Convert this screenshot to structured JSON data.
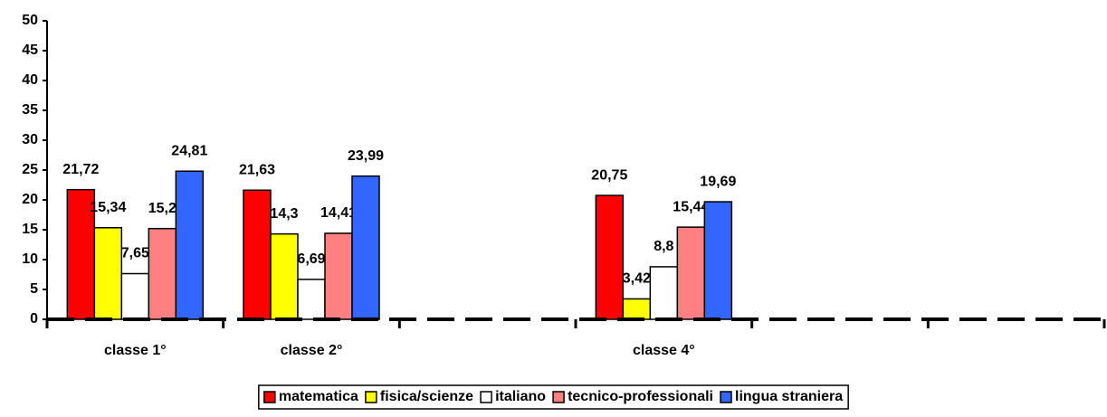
{
  "chart_data": {
    "type": "bar",
    "categories": [
      "classe 1°",
      "classe 2°",
      null,
      "classe 4°",
      null,
      null
    ],
    "series": [
      {
        "name": "matematica",
        "color": "#ff0000",
        "values": [
          21.72,
          21.63,
          null,
          20.75,
          null,
          null
        ],
        "value_labels": [
          "21,72",
          "21,63",
          null,
          "20,75",
          null,
          null
        ]
      },
      {
        "name": "fisica/scienze",
        "color": "#ffff00",
        "values": [
          15.34,
          14.3,
          null,
          3.42,
          null,
          null
        ],
        "value_labels": [
          "15,34",
          "14,3",
          null,
          "3,42",
          null,
          null
        ]
      },
      {
        "name": "italiano",
        "color": "#ffffff",
        "values": [
          7.65,
          6.69,
          null,
          8.8,
          null,
          null
        ],
        "value_labels": [
          "7,65",
          "6,69",
          null,
          "8,8",
          null,
          null
        ]
      },
      {
        "name": "tecnico-professionali",
        "color": "#ff8080",
        "values": [
          15.2,
          14.41,
          null,
          15.44,
          null,
          null
        ],
        "value_labels": [
          "15,2",
          "14,41",
          null,
          "15,44",
          null,
          null
        ]
      },
      {
        "name": "lingua straniera",
        "color": "#3366ff",
        "values": [
          24.81,
          23.99,
          null,
          19.69,
          null,
          null
        ],
        "value_labels": [
          "24,81",
          "23,99",
          null,
          "19,69",
          null,
          null
        ]
      }
    ],
    "ylim": [
      0,
      50
    ],
    "yticks": [
      0,
      5,
      10,
      15,
      20,
      25,
      30,
      35,
      40,
      45,
      50
    ],
    "legend": "bottom"
  }
}
